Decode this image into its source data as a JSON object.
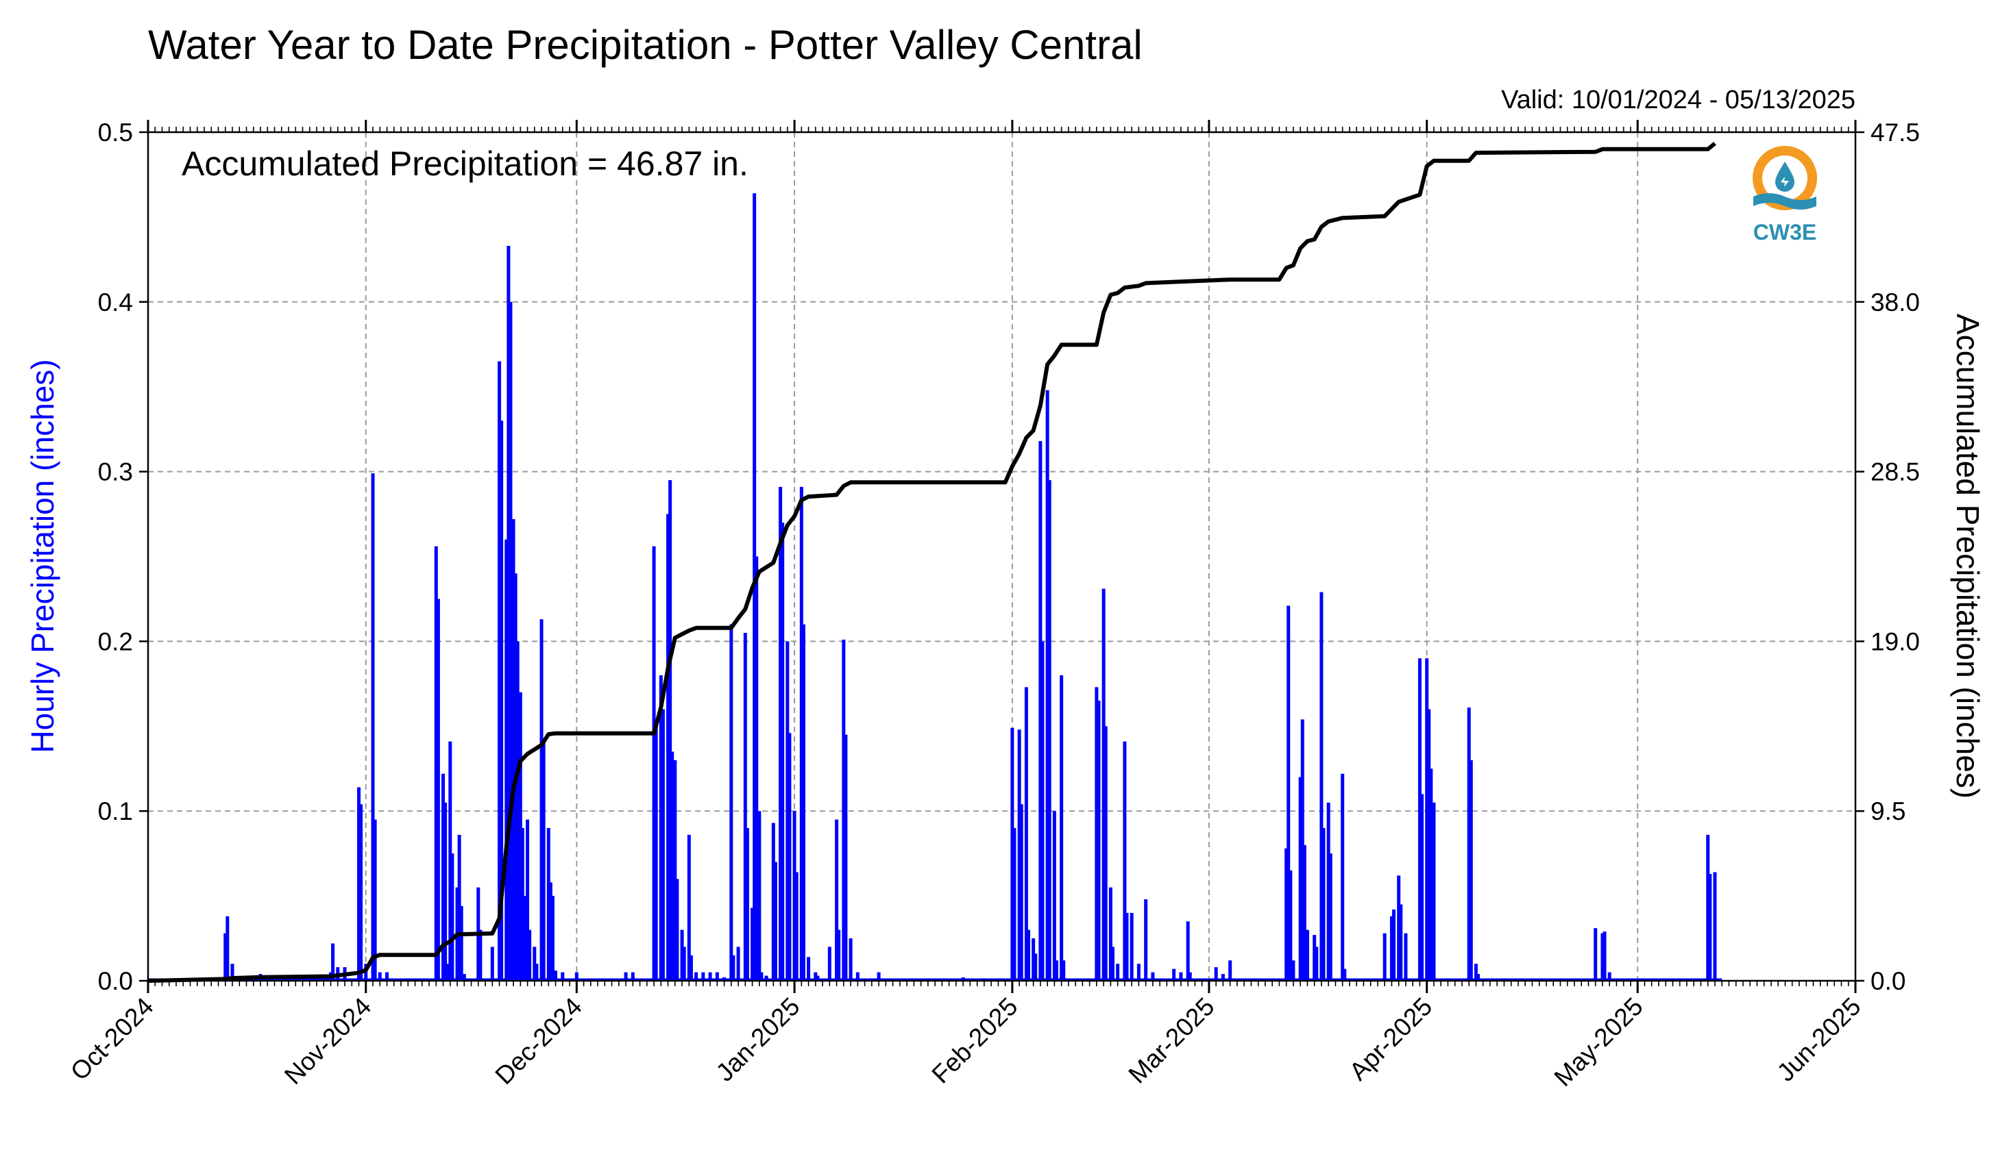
{
  "colors": {
    "hourly": "#0000ff",
    "accumulated": "#000000",
    "grid": "#9a9a9a",
    "logo_orange": "#f39a21",
    "logo_teal": "#2c8fb4"
  },
  "logo": {
    "text": "CW3E",
    "icon": "cw3e-water-drop-icon"
  },
  "chart_data": {
    "type": "bar",
    "title": "Water Year to Date Precipitation - Potter Valley Central",
    "subtitle": "Valid: 10/01/2024 - 05/13/2025",
    "annotation": "Accumulated Precipitation = 46.87 in.",
    "ylabel": "Hourly Precipitation (inches)",
    "y2label": "Accumulated Precipitation (inches)",
    "xlim": [
      "2024-10-01",
      "2025-06-01"
    ],
    "ylim": [
      0,
      0.5
    ],
    "y2lim": [
      0,
      47.5
    ],
    "yticks": [
      "0.0",
      "0.1",
      "0.2",
      "0.3",
      "0.4",
      "0.5"
    ],
    "y2ticks": [
      "0.0",
      "9.5",
      "19.0",
      "28.5",
      "38.0",
      "47.5"
    ],
    "xticks": [
      {
        "date": "2024-10-01",
        "label": "Oct-2024"
      },
      {
        "date": "2024-11-01",
        "label": "Nov-2024"
      },
      {
        "date": "2024-12-01",
        "label": "Dec-2024"
      },
      {
        "date": "2025-01-01",
        "label": "Jan-2025"
      },
      {
        "date": "2025-02-01",
        "label": "Feb-2025"
      },
      {
        "date": "2025-03-01",
        "label": "Mar-2025"
      },
      {
        "date": "2025-04-01",
        "label": "Apr-2025"
      },
      {
        "date": "2025-05-01",
        "label": "May-2025"
      },
      {
        "date": "2025-06-01",
        "label": "Jun-2025"
      }
    ],
    "grid": true,
    "series": [
      {
        "name": "Hourly Precipitation",
        "type": "bar",
        "axis": "left",
        "points": [
          [
            "2024-10-12",
            0.028
          ],
          [
            "2024-10-12",
            0.038
          ],
          [
            "2024-10-13",
            0.01
          ],
          [
            "2024-10-17",
            0.004
          ],
          [
            "2024-10-27",
            0.005
          ],
          [
            "2024-10-27",
            0.022
          ],
          [
            "2024-10-28",
            0.008
          ],
          [
            "2024-10-29",
            0.008
          ],
          [
            "2024-10-31",
            0.114
          ],
          [
            "2024-10-31",
            0.104
          ],
          [
            "2024-11-01",
            0.01
          ],
          [
            "2024-11-02",
            0.299
          ],
          [
            "2024-11-02",
            0.095
          ],
          [
            "2024-11-03",
            0.005
          ],
          [
            "2024-11-04",
            0.005
          ],
          [
            "2024-11-11",
            0.256
          ],
          [
            "2024-11-11",
            0.225
          ],
          [
            "2024-11-12",
            0.122
          ],
          [
            "2024-11-12",
            0.105
          ],
          [
            "2024-11-12",
            0.01
          ],
          [
            "2024-11-13",
            0.141
          ],
          [
            "2024-11-13",
            0.075
          ],
          [
            "2024-11-14",
            0.055
          ],
          [
            "2024-11-14",
            0.086
          ],
          [
            "2024-11-14",
            0.044
          ],
          [
            "2024-11-15",
            0.004
          ],
          [
            "2024-11-17",
            0.055
          ],
          [
            "2024-11-17",
            0.03
          ],
          [
            "2024-11-19",
            0.02
          ],
          [
            "2024-11-20",
            0.365
          ],
          [
            "2024-11-20",
            0.33
          ],
          [
            "2024-11-21",
            0.26
          ],
          [
            "2024-11-21",
            0.433
          ],
          [
            "2024-11-21",
            0.4
          ],
          [
            "2024-11-22",
            0.272
          ],
          [
            "2024-11-22",
            0.24
          ],
          [
            "2024-11-22",
            0.2
          ],
          [
            "2024-11-23",
            0.17
          ],
          [
            "2024-11-23",
            0.09
          ],
          [
            "2024-11-23",
            0.05
          ],
          [
            "2024-11-24",
            0.095
          ],
          [
            "2024-11-24",
            0.03
          ],
          [
            "2024-11-25",
            0.02
          ],
          [
            "2024-11-25",
            0.01
          ],
          [
            "2024-11-26",
            0.213
          ],
          [
            "2024-11-26",
            0.14
          ],
          [
            "2024-11-27",
            0.09
          ],
          [
            "2024-11-27",
            0.058
          ],
          [
            "2024-11-27",
            0.05
          ],
          [
            "2024-11-28",
            0.006
          ],
          [
            "2024-11-29",
            0.005
          ],
          [
            "2024-12-01",
            0.005
          ],
          [
            "2024-12-08",
            0.005
          ],
          [
            "2024-12-09",
            0.005
          ],
          [
            "2024-12-12",
            0.256
          ],
          [
            "2024-12-12",
            0.15
          ],
          [
            "2024-12-13",
            0.18
          ],
          [
            "2024-12-13",
            0.16
          ],
          [
            "2024-12-14",
            0.275
          ],
          [
            "2024-12-14",
            0.295
          ],
          [
            "2024-12-14",
            0.135
          ],
          [
            "2024-12-15",
            0.13
          ],
          [
            "2024-12-15",
            0.06
          ],
          [
            "2024-12-16",
            0.03
          ],
          [
            "2024-12-16",
            0.02
          ],
          [
            "2024-12-17",
            0.086
          ],
          [
            "2024-12-17",
            0.015
          ],
          [
            "2024-12-18",
            0.005
          ],
          [
            "2024-12-19",
            0.005
          ],
          [
            "2024-12-20",
            0.005
          ],
          [
            "2024-12-21",
            0.005
          ],
          [
            "2024-12-22",
            0.002
          ],
          [
            "2024-12-23",
            0.21
          ],
          [
            "2024-12-23",
            0.015
          ],
          [
            "2024-12-24",
            0.02
          ],
          [
            "2024-12-25",
            0.205
          ],
          [
            "2024-12-25",
            0.09
          ],
          [
            "2024-12-26",
            0.043
          ],
          [
            "2024-12-26",
            0.464
          ],
          [
            "2024-12-26",
            0.25
          ],
          [
            "2024-12-27",
            0.1
          ],
          [
            "2024-12-27",
            0.005
          ],
          [
            "2024-12-28",
            0.003
          ],
          [
            "2024-12-29",
            0.093
          ],
          [
            "2024-12-29",
            0.07
          ],
          [
            "2024-12-30",
            0.291
          ],
          [
            "2024-12-30",
            0.27
          ],
          [
            "2024-12-31",
            0.2
          ],
          [
            "2024-12-31",
            0.146
          ],
          [
            "2025-01-01",
            0.1
          ],
          [
            "2025-01-01",
            0.064
          ],
          [
            "2025-01-02",
            0.291
          ],
          [
            "2025-01-02",
            0.21
          ],
          [
            "2025-01-03",
            0.014
          ],
          [
            "2025-01-04",
            0.005
          ],
          [
            "2025-01-04",
            0.003
          ],
          [
            "2025-01-06",
            0.02
          ],
          [
            "2025-01-07",
            0.095
          ],
          [
            "2025-01-07",
            0.03
          ],
          [
            "2025-01-08",
            0.201
          ],
          [
            "2025-01-08",
            0.145
          ],
          [
            "2025-01-09",
            0.025
          ],
          [
            "2025-01-10",
            0.005
          ],
          [
            "2025-01-13",
            0.005
          ],
          [
            "2025-01-25",
            0.002
          ],
          [
            "2025-02-01",
            0.149
          ],
          [
            "2025-02-01",
            0.09
          ],
          [
            "2025-02-02",
            0.148
          ],
          [
            "2025-02-02",
            0.104
          ],
          [
            "2025-02-03",
            0.173
          ],
          [
            "2025-02-03",
            0.03
          ],
          [
            "2025-02-04",
            0.025
          ],
          [
            "2025-02-04",
            0.016
          ],
          [
            "2025-02-05",
            0.318
          ],
          [
            "2025-02-05",
            0.2
          ],
          [
            "2025-02-06",
            0.348
          ],
          [
            "2025-02-06",
            0.295
          ],
          [
            "2025-02-07",
            0.1
          ],
          [
            "2025-02-07",
            0.012
          ],
          [
            "2025-02-08",
            0.18
          ],
          [
            "2025-02-08",
            0.012
          ],
          [
            "2025-02-13",
            0.173
          ],
          [
            "2025-02-13",
            0.165
          ],
          [
            "2025-02-14",
            0.231
          ],
          [
            "2025-02-14",
            0.15
          ],
          [
            "2025-02-15",
            0.055
          ],
          [
            "2025-02-15",
            0.02
          ],
          [
            "2025-02-16",
            0.01
          ],
          [
            "2025-02-17",
            0.141
          ],
          [
            "2025-02-17",
            0.04
          ],
          [
            "2025-02-18",
            0.04
          ],
          [
            "2025-02-19",
            0.01
          ],
          [
            "2025-02-20",
            0.048
          ],
          [
            "2025-02-21",
            0.005
          ],
          [
            "2025-02-24",
            0.007
          ],
          [
            "2025-02-25",
            0.005
          ],
          [
            "2025-02-26",
            0.035
          ],
          [
            "2025-02-26",
            0.005
          ],
          [
            "2025-03-02",
            0.008
          ],
          [
            "2025-03-03",
            0.004
          ],
          [
            "2025-03-04",
            0.012
          ],
          [
            "2025-03-12",
            0.078
          ],
          [
            "2025-03-12",
            0.221
          ],
          [
            "2025-03-12",
            0.065
          ],
          [
            "2025-03-13",
            0.012
          ],
          [
            "2025-03-14",
            0.12
          ],
          [
            "2025-03-14",
            0.154
          ],
          [
            "2025-03-14",
            0.08
          ],
          [
            "2025-03-15",
            0.03
          ],
          [
            "2025-03-16",
            0.027
          ],
          [
            "2025-03-16",
            0.02
          ],
          [
            "2025-03-17",
            0.229
          ],
          [
            "2025-03-17",
            0.09
          ],
          [
            "2025-03-18",
            0.105
          ],
          [
            "2025-03-18",
            0.075
          ],
          [
            "2025-03-20",
            0.122
          ],
          [
            "2025-03-20",
            0.007
          ],
          [
            "2025-03-26",
            0.028
          ],
          [
            "2025-03-27",
            0.038
          ],
          [
            "2025-03-27",
            0.042
          ],
          [
            "2025-03-28",
            0.062
          ],
          [
            "2025-03-28",
            0.045
          ],
          [
            "2025-03-29",
            0.028
          ],
          [
            "2025-03-31",
            0.19
          ],
          [
            "2025-03-31",
            0.11
          ],
          [
            "2025-04-01",
            0.19
          ],
          [
            "2025-04-01",
            0.16
          ],
          [
            "2025-04-01",
            0.125
          ],
          [
            "2025-04-02",
            0.105
          ],
          [
            "2025-04-07",
            0.161
          ],
          [
            "2025-04-07",
            0.13
          ],
          [
            "2025-04-08",
            0.01
          ],
          [
            "2025-04-08",
            0.004
          ],
          [
            "2025-04-25",
            0.031
          ],
          [
            "2025-04-26",
            0.028
          ],
          [
            "2025-04-26",
            0.029
          ],
          [
            "2025-04-27",
            0.005
          ],
          [
            "2025-05-11",
            0.086
          ],
          [
            "2025-05-11",
            0.063
          ],
          [
            "2025-05-12",
            0.064
          ]
        ]
      },
      {
        "name": "Accumulated Precipitation",
        "type": "line",
        "axis": "right",
        "points": [
          [
            "2024-10-01",
            0.0
          ],
          [
            "2024-10-12",
            0.1
          ],
          [
            "2024-10-13",
            0.15
          ],
          [
            "2024-10-17",
            0.2
          ],
          [
            "2024-10-27",
            0.25
          ],
          [
            "2024-10-31",
            0.45
          ],
          [
            "2024-11-01",
            0.6
          ],
          [
            "2024-11-02",
            1.3
          ],
          [
            "2024-11-03",
            1.45
          ],
          [
            "2024-11-11",
            1.45
          ],
          [
            "2024-11-12",
            2.0
          ],
          [
            "2024-11-13",
            2.2
          ],
          [
            "2024-11-14",
            2.6
          ],
          [
            "2024-11-19",
            2.65
          ],
          [
            "2024-11-20",
            3.5
          ],
          [
            "2024-11-21",
            7.5
          ],
          [
            "2024-11-22",
            10.8
          ],
          [
            "2024-11-23",
            12.3
          ],
          [
            "2024-11-24",
            12.7
          ],
          [
            "2024-11-26",
            13.2
          ],
          [
            "2024-11-27",
            13.8
          ],
          [
            "2024-11-28",
            13.85
          ],
          [
            "2024-12-12",
            13.85
          ],
          [
            "2024-12-13",
            15.3
          ],
          [
            "2024-12-14",
            17.5
          ],
          [
            "2024-12-15",
            19.2
          ],
          [
            "2024-12-17",
            19.6
          ],
          [
            "2024-12-18",
            19.75
          ],
          [
            "2024-12-23",
            19.75
          ],
          [
            "2024-12-24",
            20.3
          ],
          [
            "2024-12-25",
            20.8
          ],
          [
            "2024-12-26",
            22.0
          ],
          [
            "2024-12-27",
            22.9
          ],
          [
            "2024-12-29",
            23.4
          ],
          [
            "2024-12-30",
            24.5
          ],
          [
            "2024-12-31",
            25.5
          ],
          [
            "2025-01-01",
            26.0
          ],
          [
            "2025-01-02",
            26.9
          ],
          [
            "2025-01-03",
            27.1
          ],
          [
            "2025-01-07",
            27.2
          ],
          [
            "2025-01-08",
            27.7
          ],
          [
            "2025-01-09",
            27.9
          ],
          [
            "2025-01-31",
            27.9
          ],
          [
            "2025-02-01",
            28.8
          ],
          [
            "2025-02-02",
            29.5
          ],
          [
            "2025-02-03",
            30.4
          ],
          [
            "2025-02-04",
            30.8
          ],
          [
            "2025-02-05",
            32.2
          ],
          [
            "2025-02-06",
            34.5
          ],
          [
            "2025-02-07",
            35.0
          ],
          [
            "2025-02-08",
            35.6
          ],
          [
            "2025-02-13",
            35.6
          ],
          [
            "2025-02-14",
            37.4
          ],
          [
            "2025-02-15",
            38.4
          ],
          [
            "2025-02-16",
            38.5
          ],
          [
            "2025-02-17",
            38.8
          ],
          [
            "2025-02-19",
            38.9
          ],
          [
            "2025-02-20",
            39.05
          ],
          [
            "2025-02-26",
            39.15
          ],
          [
            "2025-03-04",
            39.25
          ],
          [
            "2025-03-11",
            39.25
          ],
          [
            "2025-03-12",
            39.9
          ],
          [
            "2025-03-13",
            40.05
          ],
          [
            "2025-03-14",
            41.0
          ],
          [
            "2025-03-15",
            41.4
          ],
          [
            "2025-03-16",
            41.5
          ],
          [
            "2025-03-17",
            42.2
          ],
          [
            "2025-03-18",
            42.5
          ],
          [
            "2025-03-20",
            42.7
          ],
          [
            "2025-03-26",
            42.8
          ],
          [
            "2025-03-27",
            43.2
          ],
          [
            "2025-03-28",
            43.6
          ],
          [
            "2025-03-31",
            44.0
          ],
          [
            "2025-04-01",
            45.6
          ],
          [
            "2025-04-02",
            45.9
          ],
          [
            "2025-04-07",
            45.9
          ],
          [
            "2025-04-08",
            46.35
          ],
          [
            "2025-04-25",
            46.4
          ],
          [
            "2025-04-26",
            46.55
          ],
          [
            "2025-05-11",
            46.55
          ],
          [
            "2025-05-12",
            46.87
          ]
        ]
      }
    ]
  }
}
